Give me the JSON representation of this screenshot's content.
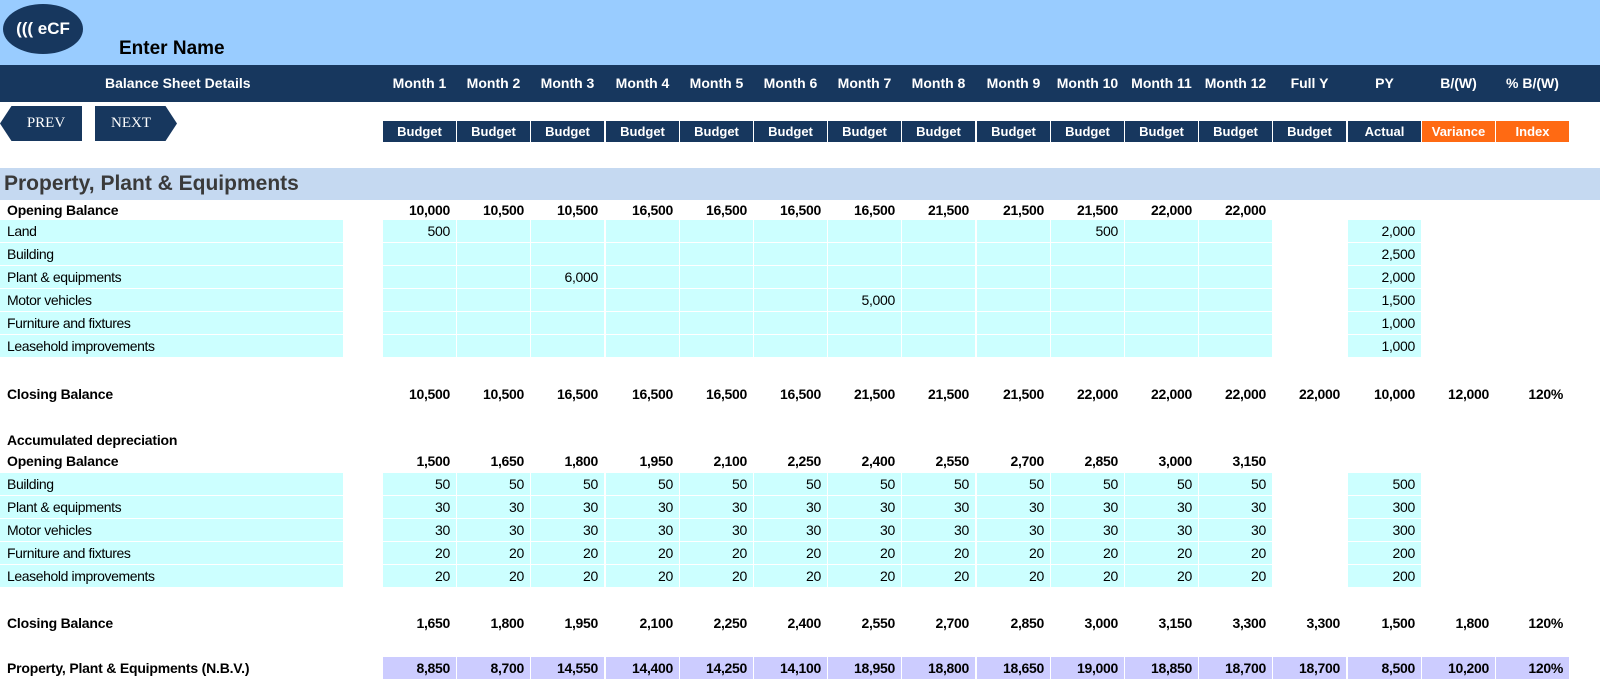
{
  "header": {
    "logo_text": "((( eCF",
    "enter_name": "Enter Name",
    "sheet_title": "Balance Sheet  Details",
    "prev_label": "PREV",
    "next_label": "NEXT"
  },
  "columns": [
    {
      "label": "Month 1",
      "sub": "Budget"
    },
    {
      "label": "Month 2",
      "sub": "Budget"
    },
    {
      "label": "Month 3",
      "sub": "Budget"
    },
    {
      "label": "Month 4",
      "sub": "Budget"
    },
    {
      "label": "Month 5",
      "sub": "Budget"
    },
    {
      "label": "Month 6",
      "sub": "Budget"
    },
    {
      "label": "Month 7",
      "sub": "Budget"
    },
    {
      "label": "Month 8",
      "sub": "Budget"
    },
    {
      "label": "Month 9",
      "sub": "Budget"
    },
    {
      "label": "Month 10",
      "sub": "Budget"
    },
    {
      "label": "Month 11",
      "sub": "Budget"
    },
    {
      "label": "Month 12",
      "sub": "Budget"
    },
    {
      "label": "Full Y",
      "sub": "Budget"
    },
    {
      "label": "PY",
      "sub": "Actual"
    },
    {
      "label": "B/(W)",
      "sub": "Variance"
    },
    {
      "label": "% B/(W)",
      "sub": "Index"
    }
  ],
  "section_title": "Property, Plant & Equipments",
  "rows": [
    {
      "label": "Opening Balance",
      "bold": true,
      "values": [
        "10,000",
        "10,500",
        "10,500",
        "16,500",
        "16,500",
        "16,500",
        "16,500",
        "21,500",
        "21,500",
        "21,500",
        "22,000",
        "22,000",
        "",
        "",
        "",
        ""
      ]
    },
    {
      "label": "Land",
      "input": true,
      "values": [
        "500",
        "",
        "",
        "",
        "",
        "",
        "",
        "",
        "",
        "500",
        "",
        "",
        "",
        "2,000",
        "",
        ""
      ]
    },
    {
      "label": "Building",
      "input": true,
      "values": [
        "",
        "",
        "",
        "",
        "",
        "",
        "",
        "",
        "",
        "",
        "",
        "",
        "",
        "2,500",
        "",
        ""
      ]
    },
    {
      "label": "Plant & equipments",
      "input": true,
      "values": [
        "",
        "",
        "6,000",
        "",
        "",
        "",
        "",
        "",
        "",
        "",
        "",
        "",
        "",
        "2,000",
        "",
        ""
      ]
    },
    {
      "label": "Motor vehicles",
      "input": true,
      "values": [
        "",
        "",
        "",
        "",
        "",
        "",
        "5,000",
        "",
        "",
        "",
        "",
        "",
        "",
        "1,500",
        "",
        ""
      ]
    },
    {
      "label": "Furniture and fixtures",
      "input": true,
      "values": [
        "",
        "",
        "",
        "",
        "",
        "",
        "",
        "",
        "",
        "",
        "",
        "",
        "",
        "1,000",
        "",
        ""
      ]
    },
    {
      "label": "Leasehold improvements",
      "input": true,
      "values": [
        "",
        "",
        "",
        "",
        "",
        "",
        "",
        "",
        "",
        "",
        "",
        "",
        "",
        "1,000",
        "",
        ""
      ]
    },
    {
      "label": "Closing Balance",
      "bold": true,
      "values": [
        "10,500",
        "10,500",
        "16,500",
        "16,500",
        "16,500",
        "16,500",
        "21,500",
        "21,500",
        "21,500",
        "22,000",
        "22,000",
        "22,000",
        "22,000",
        "10,000",
        "12,000",
        "120%"
      ]
    },
    {
      "label": "Accumulated depreciation",
      "bold": true,
      "values": []
    },
    {
      "label": "Opening Balance",
      "bold": true,
      "values": [
        "1,500",
        "1,650",
        "1,800",
        "1,950",
        "2,100",
        "2,250",
        "2,400",
        "2,550",
        "2,700",
        "2,850",
        "3,000",
        "3,150",
        "",
        "",
        "",
        ""
      ]
    },
    {
      "label": "Building",
      "input": true,
      "values": [
        "50",
        "50",
        "50",
        "50",
        "50",
        "50",
        "50",
        "50",
        "50",
        "50",
        "50",
        "50",
        "",
        "500",
        "",
        ""
      ]
    },
    {
      "label": "Plant & equipments",
      "input": true,
      "values": [
        "30",
        "30",
        "30",
        "30",
        "30",
        "30",
        "30",
        "30",
        "30",
        "30",
        "30",
        "30",
        "",
        "300",
        "",
        ""
      ]
    },
    {
      "label": "Motor vehicles",
      "input": true,
      "values": [
        "30",
        "30",
        "30",
        "30",
        "30",
        "30",
        "30",
        "30",
        "30",
        "30",
        "30",
        "30",
        "",
        "300",
        "",
        ""
      ]
    },
    {
      "label": "Furniture and fixtures",
      "input": true,
      "values": [
        "20",
        "20",
        "20",
        "20",
        "20",
        "20",
        "20",
        "20",
        "20",
        "20",
        "20",
        "20",
        "",
        "200",
        "",
        ""
      ]
    },
    {
      "label": "Leasehold improvements",
      "input": true,
      "values": [
        "20",
        "20",
        "20",
        "20",
        "20",
        "20",
        "20",
        "20",
        "20",
        "20",
        "20",
        "20",
        "",
        "200",
        "",
        ""
      ]
    },
    {
      "label": "Closing Balance",
      "bold": true,
      "values": [
        "1,650",
        "1,800",
        "1,950",
        "2,100",
        "2,250",
        "2,400",
        "2,550",
        "2,700",
        "2,850",
        "3,000",
        "3,150",
        "3,300",
        "3,300",
        "1,500",
        "1,800",
        "120%"
      ]
    },
    {
      "label": "Property, Plant & Equipments  (N.B.V.)",
      "bold": true,
      "nbv": true,
      "values": [
        "8,850",
        "8,700",
        "14,550",
        "14,400",
        "14,250",
        "14,100",
        "18,950",
        "18,800",
        "18,650",
        "19,000",
        "18,850",
        "18,700",
        "18,700",
        "8,500",
        "10,200",
        "120%"
      ]
    }
  ]
}
